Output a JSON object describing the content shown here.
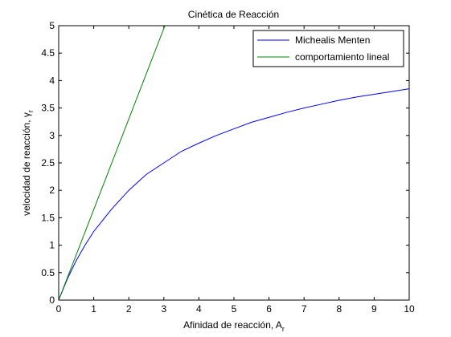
{
  "figure_background": "#ffffff",
  "chart_data": {
    "type": "line",
    "title": "Cinética de Reacción",
    "xlabel": {
      "main": "Afinidad de reacción, A",
      "sub": "r"
    },
    "ylabel": {
      "main": "velocidad de reacción, γ",
      "sub": "r"
    },
    "xlim": [
      0,
      10
    ],
    "ylim": [
      0,
      5
    ],
    "xticks": [
      0,
      1,
      2,
      3,
      4,
      5,
      6,
      7,
      8,
      9,
      10
    ],
    "yticks": [
      0,
      0.5,
      1,
      1.5,
      2,
      2.5,
      3,
      3.5,
      4,
      4.5,
      5
    ],
    "xtick_labels": [
      "0",
      "1",
      "2",
      "3",
      "4",
      "5",
      "6",
      "7",
      "8",
      "9",
      "10"
    ],
    "ytick_labels": [
      "0",
      "0.5",
      "1",
      "1.5",
      "2",
      "2.5",
      "3",
      "3.5",
      "4",
      "4.5",
      "5"
    ],
    "grid": false,
    "legend_position": "top-right",
    "series": [
      {
        "name": "Michealis Menten",
        "color": "#0000ff",
        "x": [
          0,
          0.25,
          0.5,
          0.75,
          1,
          1.5,
          2,
          2.5,
          3,
          3.5,
          4,
          4.5,
          5,
          5.5,
          6,
          6.5,
          7,
          7.5,
          8,
          8.5,
          9,
          9.5,
          10
        ],
        "y": [
          0,
          0.39,
          0.72,
          1.0,
          1.25,
          1.65,
          2.0,
          2.29,
          2.5,
          2.71,
          2.86,
          3.0,
          3.12,
          3.24,
          3.33,
          3.42,
          3.5,
          3.57,
          3.64,
          3.7,
          3.75,
          3.8,
          3.85
        ]
      },
      {
        "name": "comportamiento lineal",
        "color": "#008000",
        "x": [
          0,
          3.03
        ],
        "y": [
          0,
          5
        ]
      }
    ]
  }
}
